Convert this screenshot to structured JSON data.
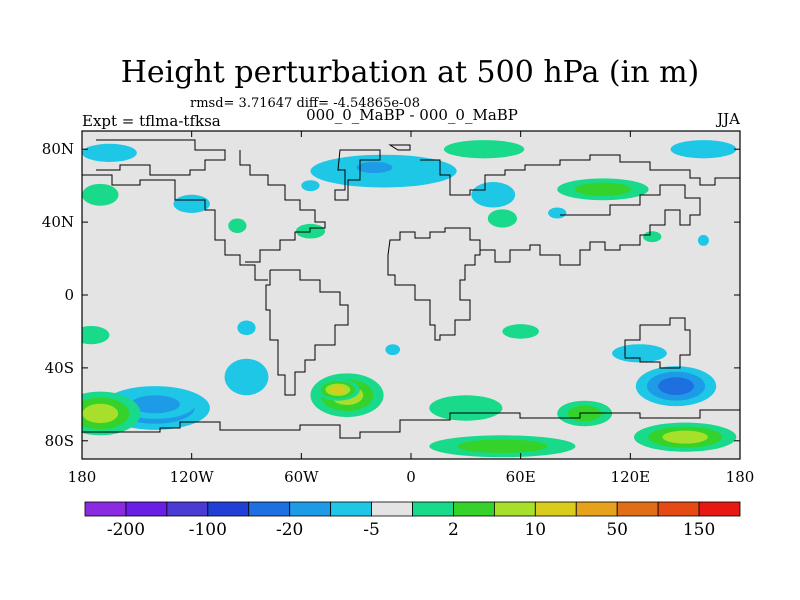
{
  "chart_data": {
    "type": "heatmap",
    "title": "Height perturbation at 500 hPa (in m)",
    "stats_text": "rmsd= 3.71647 diff= -4.54865e-08",
    "left_string": "Expt = tflma-tfksa",
    "center_string": "000_0_MaBP - 000_0_MaBP",
    "right_string": "JJA",
    "x_axis": {
      "range": [
        -180,
        180
      ],
      "tick_labels": [
        "180",
        "120W",
        "60W",
        "0",
        "60E",
        "120E",
        "180"
      ]
    },
    "y_axis": {
      "range": [
        -90,
        90
      ],
      "tick_labels": [
        "80N",
        "40N",
        "0",
        "40S",
        "80S"
      ]
    },
    "colorbar": {
      "colors": [
        "#8a2be2",
        "#6a1fe6",
        "#4b3ad4",
        "#1f3fd6",
        "#1e6fe0",
        "#1e9be6",
        "#1ec7e6",
        "#e4e4e4",
        "#19d98a",
        "#35d22c",
        "#a6e02a",
        "#d9cc1d",
        "#e6a21c",
        "#e06d18",
        "#e64a14",
        "#e61a12"
      ],
      "tick_labels": [
        "-200",
        "-100",
        "-20",
        "-5",
        "2",
        "10",
        "50",
        "150"
      ]
    },
    "anomalies": [
      {
        "lon": -140,
        "lat": -62,
        "sx": 30,
        "sy": 12,
        "level": -3
      },
      {
        "lon": -140,
        "lat": -60,
        "sx": 22,
        "sy": 8,
        "level": -2
      },
      {
        "lon": -90,
        "lat": -45,
        "sx": 12,
        "sy": 10,
        "level": -1
      },
      {
        "lon": -170,
        "lat": -65,
        "sx": 22,
        "sy": 12,
        "level": 3
      },
      {
        "lon": -35,
        "lat": -55,
        "sx": 20,
        "sy": 12,
        "level": 3
      },
      {
        "lon": -40,
        "lat": -52,
        "sx": 12,
        "sy": 6,
        "level": 4
      },
      {
        "lon": 30,
        "lat": -62,
        "sx": 20,
        "sy": 7,
        "level": 1
      },
      {
        "lon": 50,
        "lat": -83,
        "sx": 40,
        "sy": 6,
        "level": 2
      },
      {
        "lon": 145,
        "lat": -50,
        "sx": 22,
        "sy": 11,
        "level": -3
      },
      {
        "lon": 150,
        "lat": -78,
        "sx": 28,
        "sy": 8,
        "level": 3
      },
      {
        "lon": 95,
        "lat": -65,
        "sx": 15,
        "sy": 7,
        "level": 2
      },
      {
        "lon": 125,
        "lat": -32,
        "sx": 15,
        "sy": 5,
        "level": -1
      },
      {
        "lon": -15,
        "lat": 68,
        "sx": 40,
        "sy": 9,
        "level": -1
      },
      {
        "lon": -20,
        "lat": 70,
        "sx": 16,
        "sy": 5,
        "level": -2
      },
      {
        "lon": 40,
        "lat": 80,
        "sx": 22,
        "sy": 5,
        "level": 1
      },
      {
        "lon": 105,
        "lat": 58,
        "sx": 25,
        "sy": 6,
        "level": 2
      },
      {
        "lon": 160,
        "lat": 80,
        "sx": 18,
        "sy": 5,
        "level": -1
      },
      {
        "lon": -165,
        "lat": 78,
        "sx": 15,
        "sy": 5,
        "level": -1
      },
      {
        "lon": -170,
        "lat": 55,
        "sx": 10,
        "sy": 6,
        "level": 1
      },
      {
        "lon": -120,
        "lat": 50,
        "sx": 10,
        "sy": 5,
        "level": -1
      },
      {
        "lon": -95,
        "lat": 38,
        "sx": 5,
        "sy": 4,
        "level": 1
      },
      {
        "lon": -55,
        "lat": 35,
        "sx": 8,
        "sy": 4,
        "level": 1
      },
      {
        "lon": -55,
        "lat": 60,
        "sx": 5,
        "sy": 3,
        "level": -1
      },
      {
        "lon": 45,
        "lat": 55,
        "sx": 12,
        "sy": 7,
        "level": -1
      },
      {
        "lon": 50,
        "lat": 42,
        "sx": 8,
        "sy": 5,
        "level": 1
      },
      {
        "lon": 80,
        "lat": 45,
        "sx": 5,
        "sy": 3,
        "level": -1
      },
      {
        "lon": 60,
        "lat": -20,
        "sx": 10,
        "sy": 4,
        "level": 1
      },
      {
        "lon": -175,
        "lat": -22,
        "sx": 10,
        "sy": 5,
        "level": 1
      },
      {
        "lon": -90,
        "lat": -18,
        "sx": 5,
        "sy": 4,
        "level": -1
      },
      {
        "lon": 132,
        "lat": 32,
        "sx": 5,
        "sy": 3,
        "level": 1
      },
      {
        "lon": 160,
        "lat": 30,
        "sx": 3,
        "sy": 3,
        "level": -1
      },
      {
        "lon": -10,
        "lat": -30,
        "sx": 4,
        "sy": 3,
        "level": -1
      }
    ]
  }
}
